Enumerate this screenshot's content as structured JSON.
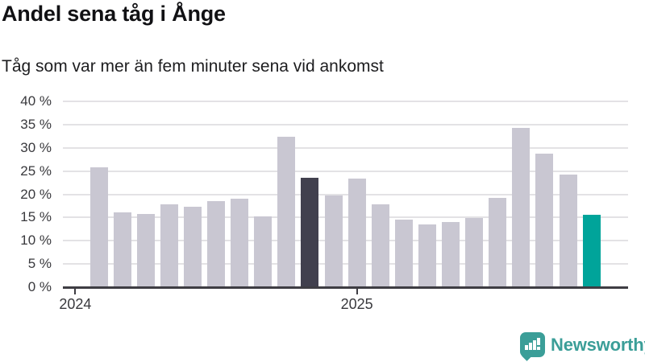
{
  "header": {
    "title": "Andel sena tåg i Ånge",
    "subtitle": "Tåg som var mer än fem minuter sena vid ankomst"
  },
  "chart_data": {
    "type": "bar",
    "title": "Andel sena tåg i Ånge",
    "subtitle": "Tåg som var mer än fem minuter sena vid ankomst",
    "unit": "percent",
    "ylim": [
      0,
      40
    ],
    "grid": true,
    "legend": "none",
    "y_ticks": [
      {
        "value": 0,
        "label": "0 %"
      },
      {
        "value": 5,
        "label": "5 %"
      },
      {
        "value": 10,
        "label": "10 %"
      },
      {
        "value": 15,
        "label": "15 %"
      },
      {
        "value": 20,
        "label": "20 %"
      },
      {
        "value": 25,
        "label": "25 %"
      },
      {
        "value": 30,
        "label": "30 %"
      },
      {
        "value": 35,
        "label": "35 %"
      },
      {
        "value": 40,
        "label": "40 %"
      }
    ],
    "x_ticks": [
      {
        "label": "2024",
        "month_offset": -1
      },
      {
        "label": "2025",
        "month_offset": 11
      }
    ],
    "x": [
      "2024-02",
      "2024-03",
      "2024-04",
      "2024-05",
      "2024-06",
      "2024-07",
      "2024-08",
      "2024-09",
      "2024-10",
      "2024-11",
      "2024-12",
      "2025-01",
      "2025-02",
      "2025-03",
      "2025-04",
      "2025-05",
      "2025-06",
      "2025-07",
      "2025-08",
      "2025-09",
      "2025-10",
      "2025-11"
    ],
    "values": [
      25.8,
      16.1,
      15.7,
      17.8,
      17.4,
      18.5,
      19.0,
      15.2,
      32.4,
      23.5,
      19.8,
      23.4,
      17.9,
      14.5,
      13.5,
      14.0,
      14.9,
      19.2,
      34.3,
      28.7,
      24.2,
      15.6
    ],
    "highlights": [
      {
        "index": 9,
        "color_role": "dark"
      },
      {
        "index": 21,
        "color_role": "accent"
      }
    ],
    "colors": {
      "default": "#c9c7d2",
      "dark": "#41404e",
      "accent": "#00a49a",
      "gridline": "#e3e2e5",
      "axis": "#3e3d43",
      "tick_text": "#39393d"
    }
  },
  "footer": {
    "brand": "Newsworthy",
    "brand_color": "#3b9e98"
  }
}
